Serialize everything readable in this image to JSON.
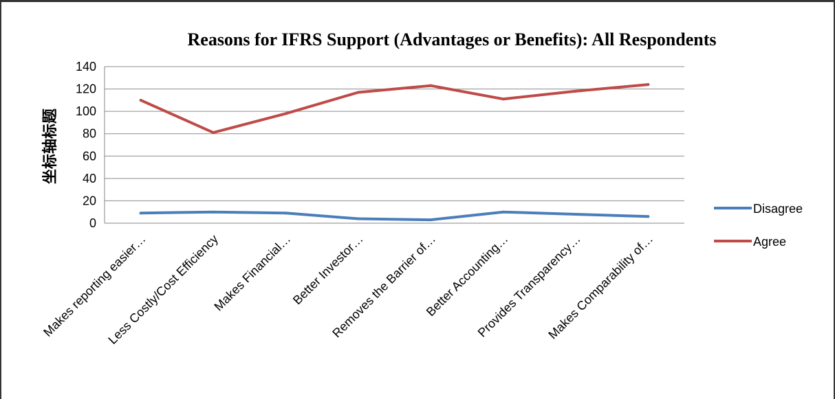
{
  "chart_data": {
    "type": "line",
    "title": "Reasons for IFRS Support (Advantages or Benefits): All Respondents",
    "ylabel": "坐标轴标题",
    "xlabel": "",
    "ylim": [
      0,
      140
    ],
    "yticks": [
      0,
      20,
      40,
      60,
      80,
      100,
      120,
      140
    ],
    "grid": true,
    "legend_position": "right",
    "categories": [
      "Makes reporting easier…",
      "Less Costly/Cost Efficiency",
      "Makes Financial…",
      "Better Investor…",
      "Removes the Barrier of…",
      "Better Accounting…",
      "Provides Transparency…",
      "Makes Comparability of…"
    ],
    "series": [
      {
        "name": "Disagree",
        "color": "#4a7ebb",
        "values": [
          9,
          10,
          9,
          4,
          3,
          10,
          8,
          6
        ]
      },
      {
        "name": "Agree",
        "color": "#be4b48",
        "values": [
          110,
          81,
          98,
          117,
          123,
          111,
          118,
          124
        ]
      }
    ]
  }
}
